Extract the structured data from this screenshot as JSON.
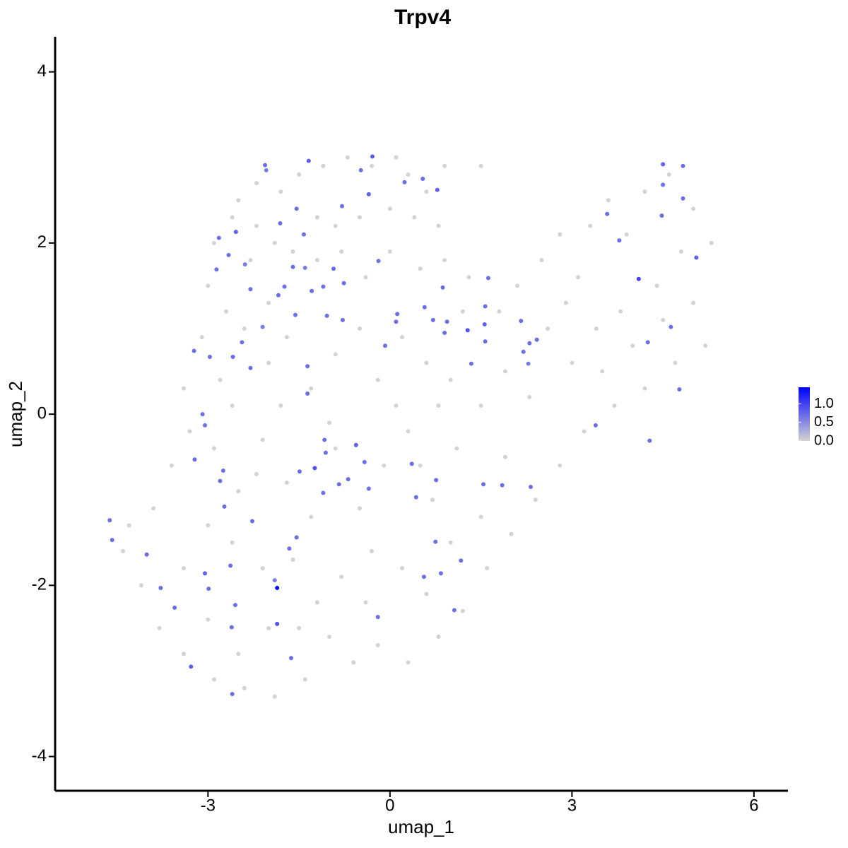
{
  "chart_data": {
    "type": "scatter",
    "title": "Trpv4",
    "xlabel": "umap_1",
    "ylabel": "umap_2",
    "xlim": [
      -5.52,
      6.56
    ],
    "ylim": [
      -4.4,
      4.41
    ],
    "xticks": [
      -3,
      0,
      3,
      6
    ],
    "yticks": [
      -4,
      -2,
      0,
      2,
      4
    ],
    "color_low": "#d3d3d3",
    "color_high": "#0000ff",
    "colorbar_lim": [
      0,
      1.45
    ],
    "colorbar_ticks": [
      {
        "value": 0,
        "label": "0.0"
      },
      0.5,
      {
        "value": 1,
        "label": "1.0"
      }
    ],
    "x": [
      -2.5,
      -2.2,
      -1.8,
      -1.5,
      -1.1,
      -0.7,
      -0.3,
      0.1,
      0.3,
      0.6,
      0.9,
      1.5,
      -2.9,
      -2.6,
      -2.2,
      -1.9,
      -1.2,
      -0.9,
      -0.5,
      0,
      0.4,
      0.8,
      -3.0,
      -2.7,
      -2.3,
      -2.0,
      -1.6,
      -1.2,
      -0.8,
      -0.4,
      0.0,
      0.5,
      0.9,
      1.3,
      -3.1,
      -2.8,
      -2.4,
      -2.0,
      -1.7,
      -1.3,
      -0.9,
      -0.5,
      -0.2,
      0.2,
      0.6,
      1.0,
      1.2,
      1.8,
      1.9,
      2.1,
      2.5,
      2.8,
      3.1,
      3.3,
      3.6,
      3.9,
      4.2,
      4.6,
      5.0,
      5.3,
      4.8,
      4.4,
      3.8,
      3.4,
      2.9,
      2.6,
      3.0,
      3.5,
      4.0,
      4.5,
      5.0,
      5.2,
      4.7,
      4.2,
      3.7,
      3.2,
      2.8,
      2.4,
      2.0,
      1.6,
      1.2,
      0.8,
      0.3,
      -0.2,
      -0.6,
      -1.0,
      -1.4,
      -1.9,
      -2.4,
      -2.9,
      -3.4,
      -3.8,
      -4.1,
      -4.4,
      -4.3,
      -3.9,
      -3.6,
      -3.3,
      -3.4,
      -2.9,
      -2.5,
      -2.1,
      -1.7,
      -1.3,
      -0.9,
      -0.5,
      -0.1,
      0.3,
      0.7,
      1.1,
      1.5,
      1.9,
      2.3,
      1.5,
      0.8,
      -0.3,
      -0.8,
      -1.2,
      -1.6,
      -2.1,
      -2.6,
      -3.0,
      -3.4,
      -3.0,
      -2.5,
      -2.0,
      -1.5,
      -0.4,
      0.2,
      0.6,
      1.0,
      -2.2,
      -2.6,
      -1.8,
      -1.0,
      0.1,
      0.5,
      -2.06,
      -2.04,
      -1.34,
      -0.48,
      -0.29,
      -0.35,
      0.24,
      0.54,
      0.78,
      -1.54,
      -1.81,
      -1.42,
      -2.54,
      -2.82,
      -2.66,
      -2.86,
      -2.39,
      -2.3,
      -1.74,
      -1.6,
      -1.4,
      -1.29,
      -1.1,
      -0.93,
      -0.79,
      -0.76,
      -0.19,
      -1.04,
      -0.78,
      -1.56,
      -1.84,
      -2.1,
      0.12,
      0.1,
      -0.08,
      0.57,
      0.87,
      0.71,
      0.94,
      0.9,
      1.28,
      1.57,
      1.62,
      1.56,
      1.57,
      1.34,
      2.16,
      2.2,
      2.3,
      2.42,
      2.28,
      3.78,
      3.58,
      4.1,
      4.5,
      4.48,
      4.5,
      4.83,
      4.83,
      5.05,
      4.63,
      4.25,
      4.77,
      4.28,
      3.39,
      -3.23,
      -2.97,
      -2.59,
      -2.44,
      -2.3,
      -1.36,
      -1.36,
      -3.09,
      -3.05,
      -3.22,
      -2.75,
      -2.8,
      -2.73,
      -2.27,
      -1.08,
      -1.06,
      -1.24,
      -1.49,
      -1.1,
      -0.84,
      -0.69,
      -0.56,
      -0.42,
      -0.35,
      0.36,
      0.43,
      0.76,
      1.54,
      1.85,
      2.32,
      0.75,
      1.17,
      0.56,
      0.84,
      1.06,
      -0.2,
      -1.54,
      -1.66,
      -1.9,
      -1.86,
      -1.63,
      -2.63,
      -3.05,
      -2.99,
      -2.55,
      -2.61,
      -2.6,
      -3.28,
      -3.55,
      -3.78,
      -4.01,
      -4.62,
      -4.58,
      -1.86
    ],
    "y": [
      2.5,
      2.7,
      2.6,
      2.8,
      2.9,
      3.0,
      2.9,
      3.0,
      2.8,
      2.6,
      2.9,
      2.9,
      2.0,
      2.3,
      2.2,
      2.0,
      2.3,
      2.2,
      2.3,
      2.4,
      2.3,
      2.2,
      1.5,
      1.2,
      1.8,
      1.3,
      1.9,
      1.8,
      1.9,
      1.6,
      1.9,
      1.7,
      1.8,
      1.6,
      0.9,
      0.4,
      1.0,
      0.6,
      0.9,
      0.3,
      0.7,
      1.0,
      0.4,
      0.9,
      0.6,
      0.4,
      1.2,
      1.2,
      0.5,
      1.5,
      1.8,
      2.1,
      1.6,
      2.2,
      2.5,
      2.1,
      2.6,
      2.8,
      2.4,
      2.0,
      1.9,
      1.5,
      1.2,
      1.0,
      1.3,
      1.0,
      0.6,
      0.5,
      0.8,
      1.1,
      1.3,
      0.8,
      0.6,
      0.3,
      0.1,
      -0.2,
      -0.6,
      -1.0,
      -1.4,
      -1.8,
      -2.3,
      -2.6,
      -2.9,
      -2.7,
      -2.9,
      -2.6,
      -3.1,
      -3.3,
      -3.2,
      -3.1,
      -2.8,
      -2.5,
      -2.0,
      -1.6,
      -1.3,
      -1.1,
      -0.6,
      -0.2,
      0.3,
      -0.4,
      -0.9,
      -0.3,
      -0.8,
      -1.2,
      -0.4,
      -1.1,
      -0.6,
      -0.2,
      -1.0,
      -0.4,
      -1.2,
      -0.5,
      0.2,
      0.1,
      0.1,
      -1.6,
      -1.9,
      -2.2,
      -1.7,
      -1.8,
      -1.5,
      -1.3,
      -1.8,
      -2.4,
      -2.8,
      -2.5,
      -2.5,
      -2.2,
      -1.8,
      -2.1,
      -1.5,
      -0.7,
      0.1,
      0.1,
      -0.1,
      0.1,
      -0.6,
      2.91,
      2.85,
      2.96,
      2.85,
      3.01,
      2.57,
      2.71,
      2.75,
      2.62,
      2.4,
      2.23,
      2.1,
      2.13,
      2.06,
      1.86,
      1.69,
      1.75,
      1.46,
      1.49,
      1.72,
      1.71,
      1.44,
      1.49,
      1.7,
      2.43,
      1.53,
      1.79,
      1.15,
      1.1,
      1.16,
      1.39,
      1.02,
      1.17,
      1.08,
      0.8,
      1.25,
      1.48,
      1.1,
      1.08,
      0.95,
      0.98,
      1.26,
      1.59,
      1.05,
      0.85,
      0.59,
      1.09,
      0.73,
      0.83,
      0.87,
      0.59,
      2.03,
      2.34,
      1.58,
      2.68,
      2.32,
      2.92,
      2.52,
      2.9,
      1.83,
      1.02,
      0.84,
      0.29,
      -0.31,
      -0.13,
      0.74,
      0.67,
      0.67,
      0.84,
      0.54,
      0.56,
      0.24,
      0.0,
      -0.13,
      -0.53,
      -0.66,
      -0.78,
      -1.08,
      -1.25,
      -0.3,
      -0.45,
      -0.63,
      -0.67,
      -0.92,
      -0.82,
      -0.76,
      -0.36,
      -0.56,
      -0.87,
      -0.58,
      -0.97,
      -0.77,
      -0.82,
      -0.83,
      -0.85,
      -1.49,
      -1.71,
      -1.9,
      -1.86,
      -2.29,
      -2.37,
      -1.44,
      -1.57,
      -1.94,
      -2.45,
      -2.85,
      -1.77,
      -1.86,
      -2.04,
      -2.23,
      -2.49,
      -3.27,
      -2.95,
      -2.26,
      -2.03,
      -1.64,
      -1.24,
      -1.47,
      -2.03
    ],
    "values": [
      0,
      0,
      0,
      0,
      0,
      0,
      0,
      0,
      0,
      0,
      0,
      0,
      0,
      0,
      0,
      0,
      0,
      0,
      0,
      0,
      0,
      0,
      0,
      0,
      0,
      0,
      0,
      0,
      0,
      0,
      0,
      0,
      0,
      0,
      0,
      0,
      0,
      0,
      0,
      0,
      0,
      0,
      0,
      0,
      0,
      0,
      0,
      0,
      0,
      0,
      0,
      0,
      0,
      0,
      0,
      0,
      0,
      0,
      0,
      0,
      0,
      0,
      0,
      0,
      0,
      0,
      0,
      0,
      0,
      0,
      0,
      0,
      0,
      0,
      0,
      0,
      0,
      0,
      0,
      0,
      0,
      0,
      0,
      0,
      0,
      0,
      0,
      0,
      0,
      0,
      0,
      0,
      0,
      0,
      0,
      0,
      0,
      0,
      0,
      0,
      0,
      0,
      0,
      0,
      0,
      0,
      0,
      0,
      0,
      0,
      0,
      0,
      0,
      0,
      0,
      0,
      0,
      0,
      0,
      0,
      0,
      0,
      0,
      0,
      0,
      0,
      0,
      0,
      0,
      0,
      0,
      0,
      0,
      0,
      0,
      0,
      0,
      0.7,
      0.6,
      0.8,
      0.7,
      0.8,
      0.8,
      0.7,
      0.7,
      0.8,
      0.7,
      0.7,
      0.7,
      0.8,
      0.7,
      0.7,
      0.7,
      0.6,
      0.7,
      0.7,
      0.7,
      0.6,
      0.7,
      0.7,
      0.7,
      0.7,
      0.7,
      0.7,
      0.7,
      0.7,
      0.7,
      0.7,
      0.6,
      0.7,
      0.7,
      0.7,
      0.7,
      0.7,
      0.7,
      0.7,
      0.7,
      0.9,
      0.7,
      0.7,
      0.8,
      0.7,
      0.7,
      0.7,
      0.7,
      0.7,
      0.7,
      0.6,
      0.7,
      0.7,
      1.0,
      0.7,
      0.7,
      0.8,
      0.7,
      0.7,
      0.8,
      0.7,
      0.7,
      0.7,
      0.7,
      0.7,
      0.7,
      0.7,
      0.7,
      0.7,
      0.7,
      0.7,
      0.7,
      0.7,
      0.7,
      0.7,
      0.7,
      0.7,
      0.7,
      0.7,
      0.7,
      0.7,
      0.9,
      0.7,
      0.7,
      0.7,
      0.7,
      0.8,
      0.7,
      0.7,
      0.7,
      0.7,
      0.7,
      0.7,
      0.7,
      0.7,
      0.7,
      0.7,
      0.7,
      0.7,
      0.7,
      0.7,
      0.7,
      0.7,
      0.6,
      0.9,
      0.7,
      0.7,
      0.8,
      0.7,
      0.7,
      0.7,
      0.7,
      0.8,
      0.7,
      0.7,
      0.7,
      0.7,
      0.7,
      1.4
    ]
  }
}
